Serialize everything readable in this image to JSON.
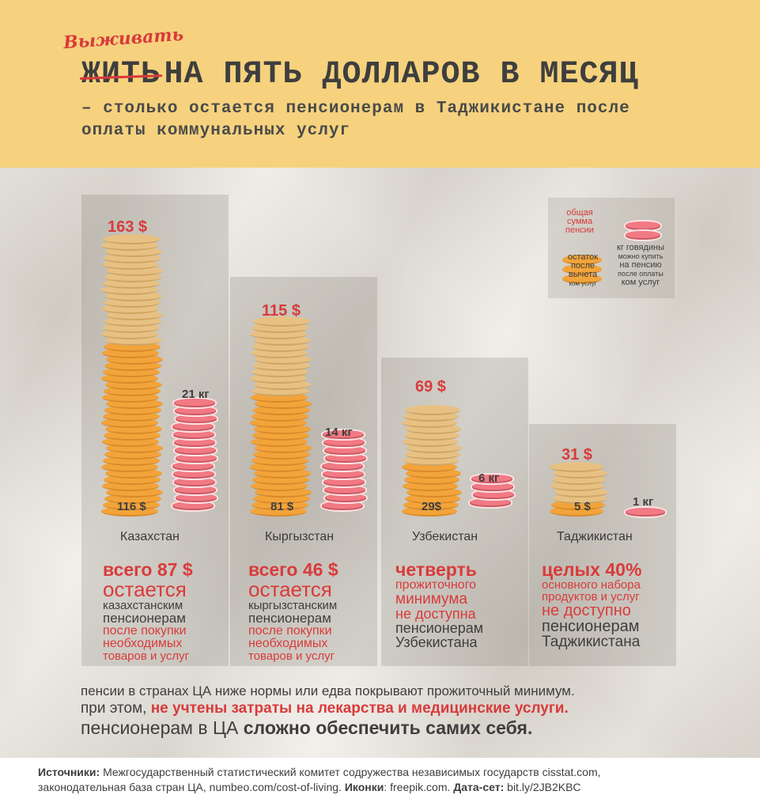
{
  "header": {
    "handwritten": "Выживать",
    "struck_word": "ЖИТЬ",
    "title": "НА ПЯТЬ ДОЛЛАРОВ В МЕСЯЦ",
    "subtitle": "– столько остается пенсионерам в Таджикистане после оплаты коммунальных услуг"
  },
  "legend": {
    "total_label": [
      "общая",
      "сумма",
      "пенсии"
    ],
    "remainder_label": [
      "остаток",
      "после",
      "вычета",
      "ком услуг"
    ],
    "beef_label": [
      "кг говядины",
      "можно купить",
      "на пенсию",
      "после оплаты",
      "ком услуг"
    ]
  },
  "countries": [
    {
      "name": "Казахстан",
      "total": "163 $",
      "remainder": "116 $",
      "beef": "21 кг",
      "desc": [
        "всего 87 $",
        "остается",
        "казахстанским",
        "пенсионерам",
        "после покупки",
        "необходимых",
        "товаров и услуг"
      ]
    },
    {
      "name": "Кыргызстан",
      "total": "115 $",
      "remainder": "81 $",
      "beef": "14 кг",
      "desc": [
        "всего 46 $",
        "остается",
        "кыргызстанским",
        "пенсионерам",
        "после покупки",
        "необходимых",
        "товаров и услуг"
      ]
    },
    {
      "name": "Узбекистан",
      "total": "69 $",
      "remainder": "29$",
      "beef": "6 кг",
      "desc": [
        "четверть",
        "прожиточного",
        "минимума",
        "не доступна",
        "пенсионерам",
        "Узбекистана"
      ]
    },
    {
      "name": "Таджикистан",
      "total": "31 $",
      "remainder": "5 $",
      "beef": "1 кг",
      "desc": [
        "целых 40%",
        "основного набора",
        "продуктов и услуг",
        "не доступно",
        "пенсионерам",
        "Таджикистана"
      ]
    }
  ],
  "footer": {
    "line1": "пенсии в странах ЦА ниже нормы или едва покрывают прожиточный минимум.",
    "line2_a": "при этом,",
    "line2_b": "не учтены затраты на лекарства и медицинские услуги.",
    "line3_a": "пенсионерам в ЦА",
    "line3_b": "сложно обеспечить самих себя."
  },
  "sources": {
    "l1_label": "Источники:",
    "l1_text": " Межгосударственный статистический комитет содружества независимых государств cisstat.com,",
    "l2_text": "законодательная база стран ЦА, numbeo.com/cost-of-living.",
    "l2_icons_label": " Иконки",
    "l2_icons": ": freepik.com.",
    "l2_data_label": "  Дата-сет:",
    "l2_data": " bit.ly/2JB2KBC"
  },
  "colors": {
    "accent_red": "#d83b3b",
    "header_yellow": "#f6d27e",
    "coin": "#f2a43a",
    "meat": "#f17a84",
    "text": "#3e3e3e"
  }
}
